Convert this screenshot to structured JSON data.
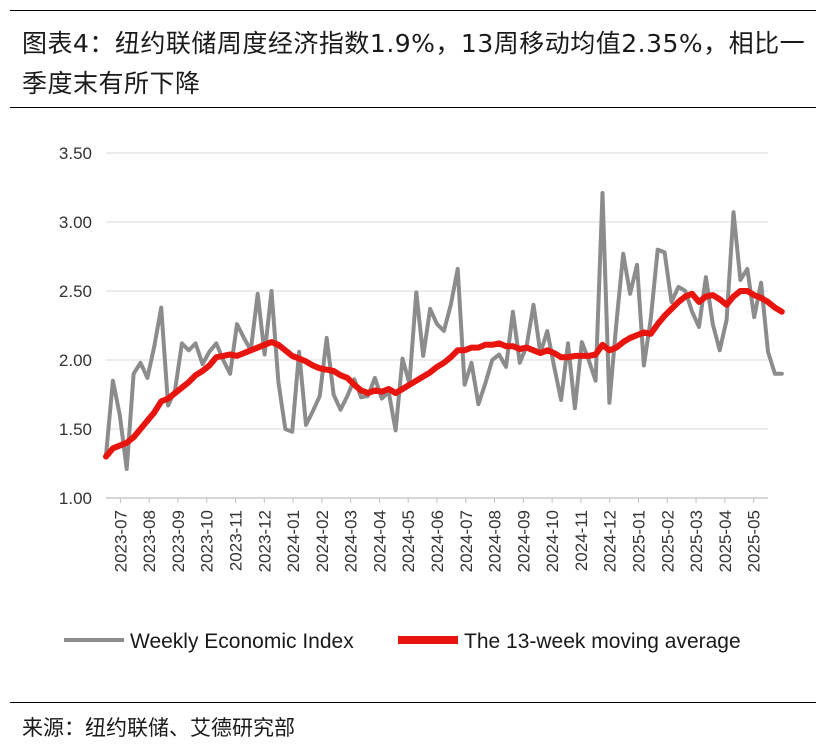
{
  "header": {
    "title": "图表4：纽约联储周度经济指数1.9%，13周移动均值2.35%，相比一季度末有所下降"
  },
  "footer": {
    "source": "来源：纽约联储、艾德研究部"
  },
  "colors": {
    "weekly": "#8c8c8c",
    "moving_avg": "#e8140e",
    "grid": "#d9d9d9",
    "axis": "#bfbfbf"
  },
  "chart_data": {
    "type": "line",
    "title": "",
    "xlabel": "",
    "ylabel": "",
    "ylim": [
      1.0,
      3.5
    ],
    "yticks": [
      "1.00",
      "1.50",
      "2.00",
      "2.50",
      "3.00",
      "3.50"
    ],
    "grid": "horizontal",
    "legend": "bottom",
    "x_tick_labels": [
      "2023-07",
      "2023-08",
      "2023-09",
      "2023-10",
      "2023-11",
      "2023-12",
      "2024-01",
      "2024-02",
      "2024-03",
      "2024-04",
      "2024-05",
      "2024-06",
      "2024-07",
      "2024-08",
      "2024-09",
      "2024-10",
      "2024-11",
      "2024-12",
      "2025-01",
      "2025-02",
      "2025-03",
      "2025-04",
      "2025-05"
    ],
    "x_range_weeks": [
      0,
      96
    ],
    "series": [
      {
        "name": "Weekly Economic Index",
        "color": "#8c8c8c",
        "values": [
          1.31,
          1.85,
          1.6,
          1.21,
          1.9,
          1.98,
          1.87,
          2.1,
          2.38,
          1.67,
          1.78,
          2.12,
          2.07,
          2.12,
          1.97,
          2.06,
          2.12,
          2.0,
          1.9,
          2.26,
          2.16,
          2.07,
          2.48,
          2.04,
          2.5,
          1.84,
          1.5,
          1.48,
          2.06,
          1.53,
          1.63,
          1.74,
          2.16,
          1.75,
          1.64,
          1.74,
          1.86,
          1.73,
          1.74,
          1.87,
          1.72,
          1.77,
          1.49,
          2.01,
          1.83,
          2.49,
          2.03,
          2.37,
          2.26,
          2.21,
          2.4,
          2.66,
          1.82,
          1.98,
          1.68,
          1.83,
          2.0,
          2.04,
          1.95,
          2.35,
          1.98,
          2.1,
          2.4,
          2.05,
          2.21,
          1.95,
          1.71,
          2.12,
          1.65,
          2.13,
          2.0,
          1.85,
          3.21,
          1.69,
          2.26,
          2.77,
          2.48,
          2.69,
          1.96,
          2.3,
          2.8,
          2.78,
          2.42,
          2.53,
          2.5,
          2.35,
          2.24,
          2.6,
          2.26,
          2.07,
          2.29,
          3.07,
          2.58,
          2.66,
          2.31,
          2.56,
          2.06,
          1.9,
          1.9
        ],
        "x_start_week": 0
      },
      {
        "name": "The 13-week moving average",
        "color": "#e8140e",
        "values": [
          1.3,
          1.36,
          1.38,
          1.4,
          1.44,
          1.5,
          1.56,
          1.62,
          1.7,
          1.72,
          1.76,
          1.8,
          1.84,
          1.89,
          1.92,
          1.96,
          2.02,
          2.03,
          2.04,
          2.03,
          2.05,
          2.07,
          2.09,
          2.11,
          2.13,
          2.11,
          2.07,
          2.03,
          2.01,
          1.99,
          1.96,
          1.94,
          1.93,
          1.92,
          1.89,
          1.87,
          1.82,
          1.78,
          1.76,
          1.78,
          1.77,
          1.79,
          1.76,
          1.79,
          1.82,
          1.85,
          1.88,
          1.91,
          1.95,
          1.98,
          2.02,
          2.07,
          2.07,
          2.09,
          2.09,
          2.11,
          2.11,
          2.12,
          2.1,
          2.1,
          2.08,
          2.09,
          2.07,
          2.05,
          2.07,
          2.05,
          2.02,
          2.02,
          2.03,
          2.03,
          2.03,
          2.04,
          2.11,
          2.07,
          2.09,
          2.13,
          2.16,
          2.18,
          2.2,
          2.19,
          2.26,
          2.32,
          2.37,
          2.42,
          2.46,
          2.48,
          2.42,
          2.46,
          2.47,
          2.44,
          2.4,
          2.46,
          2.5,
          2.5,
          2.47,
          2.45,
          2.42,
          2.38,
          2.35
        ],
        "x_start_week": 0
      }
    ]
  }
}
